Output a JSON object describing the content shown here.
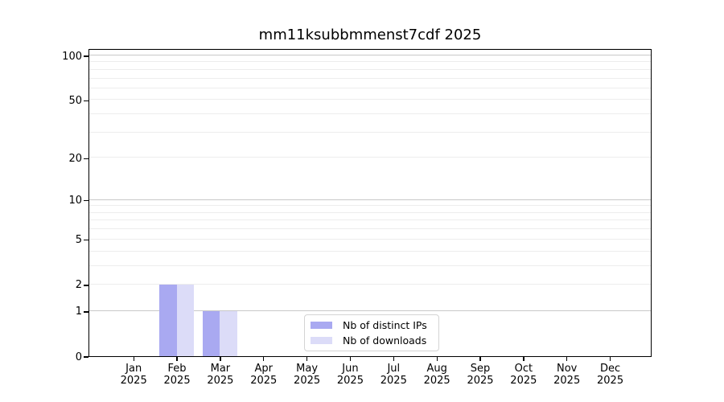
{
  "title": "mm11ksubbmmenst7cdf 2025",
  "colors": {
    "distinct_ips_bar": "#a9a9f1",
    "downloads_bar": "#dcdcf8",
    "major_gridline": "#c8c8c8",
    "minor_gridline": "#ededed",
    "axis_spine": "#000000"
  },
  "legend": {
    "items": [
      {
        "label": "Nb of distinct IPs"
      },
      {
        "label": "Nb of downloads"
      }
    ]
  },
  "chart_data": {
    "type": "bar",
    "title": "mm11ksubbmmenst7cdf 2025",
    "categories": [
      "Jan",
      "Feb",
      "Mar",
      "Apr",
      "May",
      "Jun",
      "Jul",
      "Aug",
      "Sep",
      "Oct",
      "Nov",
      "Dec"
    ],
    "year_label": "2025",
    "series": [
      {
        "name": "Nb of distinct IPs",
        "color": "#a9a9f1",
        "values": [
          0,
          2,
          1,
          0,
          0,
          0,
          0,
          0,
          0,
          0,
          0,
          0
        ]
      },
      {
        "name": "Nb of downloads",
        "color": "#dcdcf8",
        "values": [
          0,
          2,
          1,
          0,
          0,
          0,
          0,
          0,
          0,
          0,
          0,
          0
        ]
      }
    ],
    "yscale": "log1p",
    "ylim": [
      0,
      112
    ],
    "yticks": [
      0,
      1,
      2,
      5,
      10,
      20,
      50,
      100
    ],
    "yticklabels": [
      "0",
      "1",
      "2",
      "5",
      "10",
      "20",
      "50",
      "100"
    ],
    "major_grid_values": [
      1,
      10,
      100
    ],
    "minor_grid_values": [
      2,
      3,
      4,
      5,
      6,
      7,
      8,
      9,
      20,
      30,
      40,
      50,
      60,
      70,
      80,
      90,
      110
    ],
    "grid": true,
    "legend_position": "lower center"
  }
}
